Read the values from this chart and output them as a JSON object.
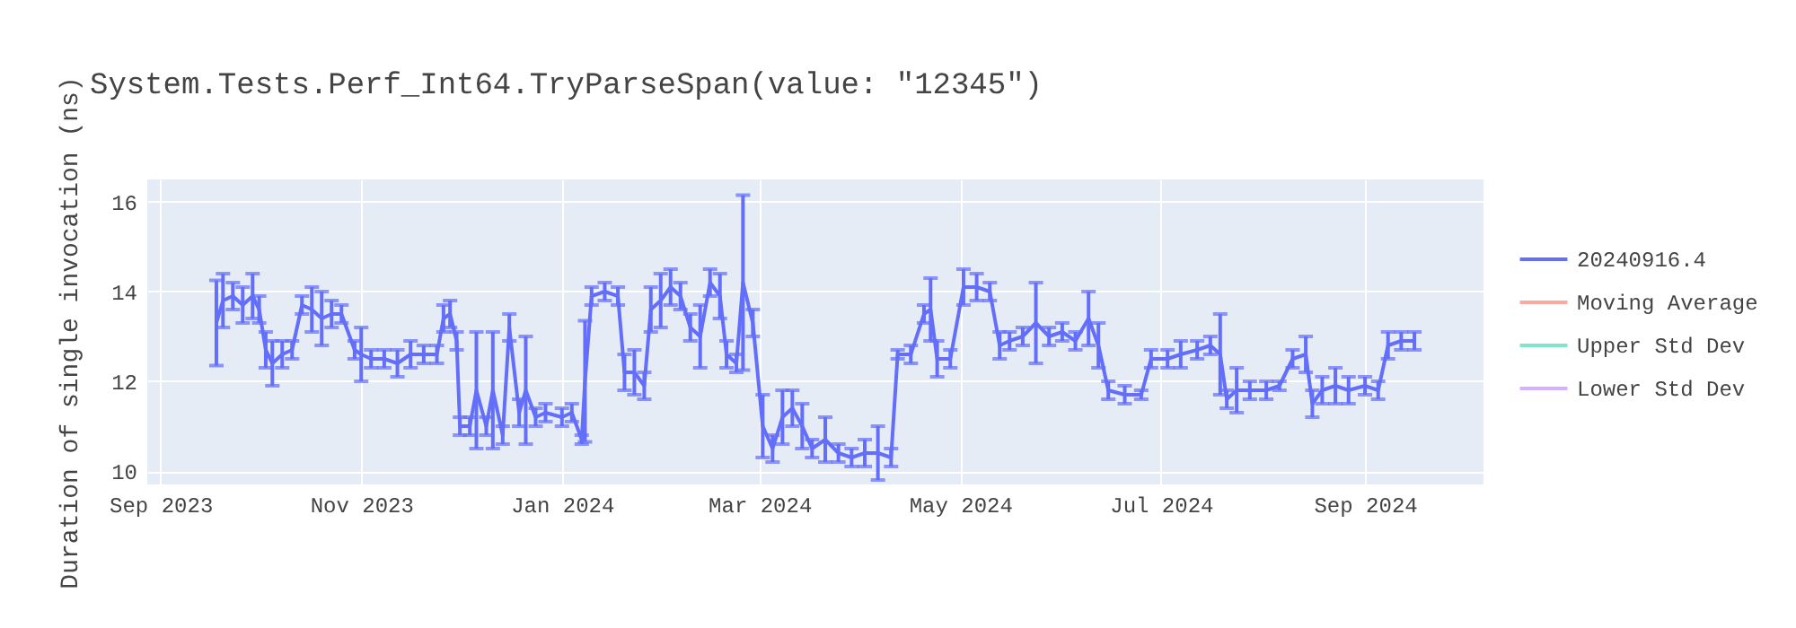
{
  "chart_data": {
    "type": "line",
    "title": "System.Tests.Perf_Int64.TryParseSpan(value: \"12345\")",
    "ylabel": "Duration of single invocation (ns)",
    "x": [
      "2023-09-18",
      "2023-09-20",
      "2023-09-23",
      "2023-09-26",
      "2023-09-29",
      "2023-10-01",
      "2023-10-03",
      "2023-10-05",
      "2023-10-08",
      "2023-10-11",
      "2023-10-14",
      "2023-10-17",
      "2023-10-20",
      "2023-10-23",
      "2023-10-26",
      "2023-10-30",
      "2023-11-01",
      "2023-11-04",
      "2023-11-08",
      "2023-11-12",
      "2023-11-16",
      "2023-11-20",
      "2023-11-24",
      "2023-11-26",
      "2023-11-28",
      "2023-11-30",
      "2023-12-01",
      "2023-12-04",
      "2023-12-06",
      "2023-12-09",
      "2023-12-11",
      "2023-12-14",
      "2023-12-16",
      "2023-12-19",
      "2023-12-21",
      "2023-12-24",
      "2023-12-27",
      "2024-01-01",
      "2024-01-04",
      "2024-01-07",
      "2024-01-08",
      "2024-01-10",
      "2024-01-14",
      "2024-01-18",
      "2024-01-20",
      "2024-01-23",
      "2024-01-26",
      "2024-01-28",
      "2024-01-31",
      "2024-02-03",
      "2024-02-06",
      "2024-02-09",
      "2024-02-12",
      "2024-02-15",
      "2024-02-18",
      "2024-02-20",
      "2024-02-23",
      "2024-02-25",
      "2024-02-28",
      "2024-03-02",
      "2024-03-05",
      "2024-03-08",
      "2024-03-11",
      "2024-03-14",
      "2024-03-17",
      "2024-03-21",
      "2024-03-25",
      "2024-03-29",
      "2024-04-02",
      "2024-04-06",
      "2024-04-10",
      "2024-04-12",
      "2024-04-16",
      "2024-04-20",
      "2024-04-22",
      "2024-04-24",
      "2024-04-28",
      "2024-05-02",
      "2024-05-06",
      "2024-05-10",
      "2024-05-13",
      "2024-05-16",
      "2024-05-20",
      "2024-05-24",
      "2024-05-28",
      "2024-06-01",
      "2024-06-05",
      "2024-06-09",
      "2024-06-12",
      "2024-06-15",
      "2024-06-20",
      "2024-06-25",
      "2024-06-28",
      "2024-07-03",
      "2024-07-07",
      "2024-07-12",
      "2024-07-16",
      "2024-07-19",
      "2024-07-21",
      "2024-07-24",
      "2024-07-28",
      "2024-08-02",
      "2024-08-06",
      "2024-08-10",
      "2024-08-14",
      "2024-08-16",
      "2024-08-19",
      "2024-08-23",
      "2024-08-27",
      "2024-09-01",
      "2024-09-05",
      "2024-09-08",
      "2024-09-12",
      "2024-09-16"
    ],
    "series": [
      {
        "name": "20240916.4",
        "color": "#636efa",
        "values": [
          13.3,
          13.8,
          13.9,
          13.7,
          13.9,
          13.6,
          12.7,
          12.4,
          12.6,
          12.7,
          13.7,
          13.6,
          13.4,
          13.5,
          13.5,
          12.7,
          12.6,
          12.5,
          12.5,
          12.4,
          12.6,
          12.6,
          12.6,
          13.4,
          13.5,
          12.9,
          11.0,
          11.0,
          11.8,
          11.0,
          11.8,
          10.8,
          13.2,
          11.3,
          11.8,
          11.2,
          11.3,
          11.2,
          11.3,
          10.7,
          12.0,
          13.9,
          14.0,
          13.9,
          12.2,
          12.2,
          11.9,
          13.6,
          13.8,
          14.1,
          13.9,
          13.2,
          13.0,
          14.2,
          13.9,
          12.6,
          12.4,
          14.2,
          13.3,
          11.0,
          10.5,
          11.2,
          11.4,
          11.0,
          10.5,
          10.7,
          10.4,
          10.3,
          10.4,
          10.4,
          10.3,
          12.6,
          12.6,
          13.5,
          13.6,
          12.5,
          12.5,
          14.1,
          14.1,
          14.0,
          12.8,
          12.9,
          13.0,
          13.3,
          13.0,
          13.1,
          12.9,
          13.4,
          12.8,
          11.8,
          11.7,
          11.7,
          12.5,
          12.5,
          12.6,
          12.7,
          12.8,
          12.6,
          11.6,
          11.8,
          11.8,
          11.8,
          11.9,
          12.5,
          12.6,
          11.5,
          11.8,
          11.9,
          11.8,
          11.9,
          11.8,
          12.8,
          12.9,
          12.9
        ],
        "errors": [
          0.95,
          0.6,
          0.3,
          0.4,
          0.5,
          0.3,
          0.4,
          0.5,
          0.3,
          0.2,
          0.2,
          0.5,
          0.6,
          0.3,
          0.2,
          0.2,
          0.6,
          0.2,
          0.2,
          0.3,
          0.3,
          0.2,
          0.2,
          0.3,
          0.3,
          0.2,
          0.2,
          0.2,
          1.3,
          0.2,
          1.3,
          0.2,
          0.3,
          0.3,
          1.2,
          0.2,
          0.2,
          0.2,
          0.2,
          0.1,
          1.35,
          0.2,
          0.2,
          0.2,
          0.4,
          0.5,
          0.3,
          0.5,
          0.6,
          0.4,
          0.3,
          0.3,
          0.7,
          0.3,
          0.5,
          0.3,
          0.2,
          1.95,
          0.3,
          0.7,
          0.3,
          0.6,
          0.4,
          0.5,
          0.2,
          0.5,
          0.2,
          0.2,
          0.3,
          0.6,
          0.2,
          0.1,
          0.2,
          0.2,
          0.7,
          0.4,
          0.2,
          0.4,
          0.3,
          0.2,
          0.3,
          0.2,
          0.2,
          0.9,
          0.2,
          0.2,
          0.2,
          0.6,
          0.5,
          0.2,
          0.2,
          0.1,
          0.2,
          0.2,
          0.3,
          0.2,
          0.2,
          0.9,
          0.2,
          0.5,
          0.2,
          0.2,
          0.1,
          0.2,
          0.4,
          0.3,
          0.3,
          0.4,
          0.3,
          0.2,
          0.2,
          0.3,
          0.2,
          0.2
        ]
      },
      {
        "name": "Moving Average",
        "color": "#f7aa9d",
        "values": [
          null,
          null,
          null,
          null,
          null,
          null,
          null,
          null,
          null,
          null,
          null,
          null,
          null,
          null,
          null,
          null,
          null,
          null,
          null,
          null,
          null,
          null,
          null,
          null,
          null,
          null,
          null,
          null,
          null,
          null,
          null,
          null,
          null,
          null,
          null,
          null,
          null,
          null,
          null,
          null,
          null,
          null,
          null,
          null,
          null,
          null,
          null,
          null,
          null,
          null,
          null,
          null,
          null,
          null,
          null,
          null,
          null,
          null,
          null,
          null,
          null,
          null,
          null,
          null,
          null,
          null,
          null,
          null,
          null,
          null,
          null,
          null,
          null,
          null,
          null,
          null,
          null,
          null,
          null,
          null,
          null,
          null,
          null,
          null,
          null,
          null,
          null,
          null,
          null,
          null,
          null,
          null,
          null,
          null,
          null,
          null,
          null,
          null,
          null,
          null,
          null,
          null,
          null,
          null,
          null,
          null,
          null,
          null,
          null,
          null,
          null,
          null,
          null,
          null
        ]
      },
      {
        "name": "Upper Std Dev",
        "color": "#80e6cb",
        "values": [
          null,
          null,
          null,
          null,
          null,
          null,
          null,
          null,
          null,
          null,
          null,
          null,
          null,
          null,
          null,
          null,
          null,
          null,
          null,
          null,
          null,
          null,
          null,
          null,
          null,
          null,
          null,
          null,
          null,
          null,
          null,
          null,
          null,
          null,
          null,
          null,
          null,
          null,
          null,
          null,
          null,
          null,
          null,
          null,
          null,
          null,
          null,
          null,
          null,
          null,
          null,
          null,
          null,
          null,
          null,
          null,
          null,
          null,
          null,
          null,
          null,
          null,
          null,
          null,
          null,
          null,
          null,
          null,
          null,
          null,
          null,
          null,
          null,
          null,
          null,
          null,
          null,
          null,
          null,
          null,
          null,
          null,
          null,
          null,
          null,
          null,
          null,
          null,
          null,
          null,
          null,
          null,
          null,
          null,
          null,
          null,
          null,
          null,
          null,
          null,
          null,
          null,
          null,
          null,
          null,
          null,
          null,
          null,
          null,
          null,
          null,
          null,
          null,
          null
        ]
      },
      {
        "name": "Lower Std Dev",
        "color": "#d5b1fd",
        "values": [
          null,
          null,
          null,
          null,
          null,
          null,
          null,
          null,
          null,
          null,
          null,
          null,
          null,
          null,
          null,
          null,
          null,
          null,
          null,
          null,
          null,
          null,
          null,
          null,
          null,
          null,
          null,
          null,
          null,
          null,
          null,
          null,
          null,
          null,
          null,
          null,
          null,
          null,
          null,
          null,
          null,
          null,
          null,
          null,
          null,
          null,
          null,
          null,
          null,
          null,
          null,
          null,
          null,
          null,
          null,
          null,
          null,
          null,
          null,
          null,
          null,
          null,
          null,
          null,
          null,
          null,
          null,
          null,
          null,
          null,
          null,
          null,
          null,
          null,
          null,
          null,
          null,
          null,
          null,
          null,
          null,
          null,
          null,
          null,
          null,
          null,
          null,
          null,
          null,
          null,
          null,
          null,
          null,
          null,
          null,
          null,
          null,
          null,
          null,
          null,
          null,
          null,
          null,
          null,
          null,
          null,
          null,
          null,
          null,
          null,
          null,
          null,
          null,
          null
        ]
      }
    ],
    "xlim": [
      "2023-08-28",
      "2024-10-07"
    ],
    "xticks": [
      {
        "value": "2023-09-01",
        "label": "Sep 2023"
      },
      {
        "value": "2023-11-01",
        "label": "Nov 2023"
      },
      {
        "value": "2024-01-01",
        "label": "Jan 2024"
      },
      {
        "value": "2024-03-01",
        "label": "Mar 2024"
      },
      {
        "value": "2024-05-01",
        "label": "May 2024"
      },
      {
        "value": "2024-07-01",
        "label": "Jul 2024"
      },
      {
        "value": "2024-09-01",
        "label": "Sep 2024"
      }
    ],
    "ylim": [
      9.7,
      16.5
    ],
    "yticks": [
      10,
      12,
      14,
      16
    ],
    "grid": true,
    "legend": "top right"
  }
}
